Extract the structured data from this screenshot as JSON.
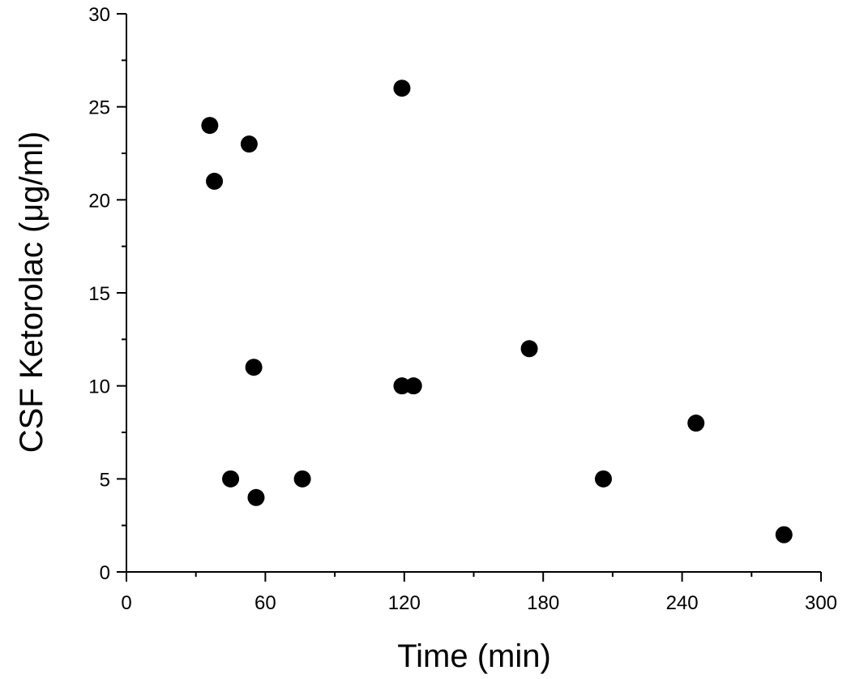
{
  "chart_data": {
    "type": "scatter",
    "title": "",
    "xlabel": "Time (min)",
    "ylabel": "CSF Ketorolac (μg/ml)",
    "xlim": [
      0,
      300
    ],
    "ylim": [
      0,
      30
    ],
    "x_ticks": [
      0,
      60,
      120,
      180,
      240,
      300
    ],
    "y_ticks": [
      0,
      5,
      10,
      15,
      20,
      25,
      30
    ],
    "x_minor_step": 30,
    "y_minor_step": 2.5,
    "grid": false,
    "legend": "none",
    "marker_color": "#000000",
    "series": [
      {
        "points": [
          {
            "x": 36,
            "y": 24
          },
          {
            "x": 38,
            "y": 21
          },
          {
            "x": 45,
            "y": 5
          },
          {
            "x": 53,
            "y": 23
          },
          {
            "x": 55,
            "y": 11
          },
          {
            "x": 56,
            "y": 4
          },
          {
            "x": 76,
            "y": 5
          },
          {
            "x": 119,
            "y": 26
          },
          {
            "x": 119,
            "y": 10
          },
          {
            "x": 124,
            "y": 10
          },
          {
            "x": 174,
            "y": 12
          },
          {
            "x": 206,
            "y": 5
          },
          {
            "x": 246,
            "y": 8
          },
          {
            "x": 284,
            "y": 2
          }
        ]
      }
    ]
  }
}
